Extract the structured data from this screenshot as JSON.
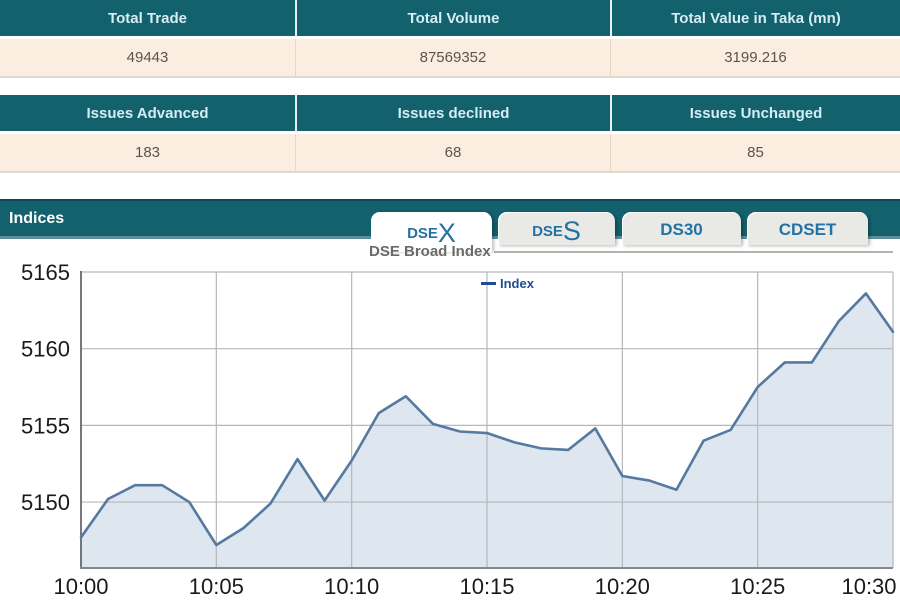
{
  "summary_tables": [
    {
      "headers": [
        "Total Trade",
        "Total Volume",
        "Total Value in Taka (mn)"
      ],
      "values": [
        "49443",
        "87569352",
        "3199.216"
      ]
    },
    {
      "headers": [
        "Issues Advanced",
        "Issues declined",
        "Issues Unchanged"
      ],
      "values": [
        "183",
        "68",
        "85"
      ]
    }
  ],
  "indices_panel": {
    "title": "Indices",
    "tabs": [
      {
        "prefix": "DSE",
        "suffix": "X",
        "active": true
      },
      {
        "prefix": "DSE",
        "suffix": "S",
        "active": false
      },
      {
        "prefix": "DS30",
        "suffix": "",
        "active": false
      },
      {
        "prefix": "CDSET",
        "suffix": "",
        "active": false
      }
    ]
  },
  "chart_data": {
    "type": "area",
    "title": "DSE Broad Index",
    "legend_label": "Index",
    "legend_position": "top-center",
    "grid": true,
    "x_tick_minutes": [
      0,
      5,
      10,
      15,
      20,
      25,
      30
    ],
    "x_tick_labels": [
      "10:00",
      "10:05",
      "10:10",
      "10:15",
      "10:20",
      "10:25",
      "10:30"
    ],
    "x_gridline_minutes": [
      5,
      10,
      15,
      20,
      25
    ],
    "x_range_minutes": [
      0,
      30
    ],
    "yticks": [
      5150,
      5155,
      5160,
      5165
    ],
    "ylim": [
      5145.7,
      5165
    ],
    "x_minutes": [
      0,
      1,
      2,
      3,
      4,
      5,
      6,
      7,
      8,
      9,
      10,
      11,
      12,
      13,
      14,
      15,
      16,
      17,
      18,
      19,
      20,
      21,
      22,
      23,
      24,
      25,
      26,
      27,
      28,
      29,
      30
    ],
    "series": [
      {
        "name": "Index",
        "values": [
          5147.7,
          5150.2,
          5151.1,
          5151.1,
          5150.0,
          5147.2,
          5148.3,
          5149.9,
          5152.8,
          5150.1,
          5152.7,
          5155.8,
          5156.9,
          5155.1,
          5154.6,
          5154.5,
          5153.9,
          5153.5,
          5153.4,
          5154.8,
          5151.7,
          5151.4,
          5150.8,
          5154.0,
          5154.7,
          5157.5,
          5159.1,
          5159.1,
          5161.8,
          5163.6,
          5161.1
        ]
      }
    ],
    "colors": {
      "line": "#56799f",
      "fill": "#dee6f0",
      "grid": "#b5b8bb",
      "left_axis": "#55575a",
      "bottom_axis": "#85898c",
      "tick_text": "#1a1a1a",
      "legend": "#1e4e8f"
    }
  },
  "colors": {
    "header_teal": "#14616e",
    "header_teal_dark_edge": "#0d4754",
    "bar_bottom_edge": "#5e8f9b",
    "row_peach": "#fbeee0",
    "header_text": "#d5edf3",
    "value_text": "#5b544d",
    "tab_text_blue": "#2472a4",
    "tab_inactive_bg": "#e9e9e6",
    "chart_title_gray": "#6a6a6a"
  }
}
